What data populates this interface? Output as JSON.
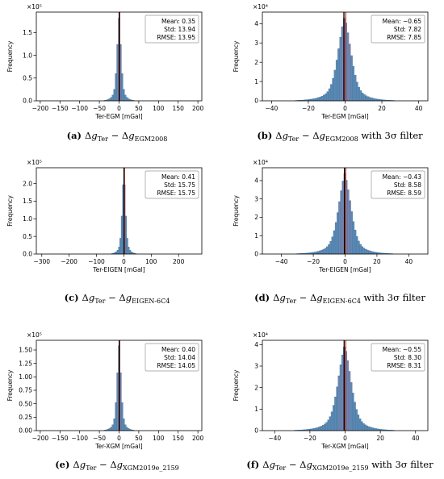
{
  "chart_data": [
    {
      "type": "bar",
      "panel": "(a)",
      "caption": {
        "label": "(a)",
        "text": "Δg_Ter − Δg_EGM2008"
      },
      "xlabel": "Ter-EGM [mGal]",
      "ylabel": "Frequency",
      "y_scale_label": "×10⁵",
      "xlim": [
        -210,
        210
      ],
      "ylim": [
        0,
        1.95
      ],
      "xticks": [
        -200,
        -150,
        -100,
        -50,
        0,
        50,
        100,
        150,
        200
      ],
      "yticks": [
        0.0,
        0.5,
        1.0,
        1.5
      ],
      "ytick_labels": [
        "0.0",
        "0.5",
        "1.0",
        "1.5"
      ],
      "stats": [
        {
          "label": "Mean:",
          "value": "0.35"
        },
        {
          "label": "Std:",
          "value": "13.94"
        },
        {
          "label": "RMSE:",
          "value": "13.95"
        }
      ],
      "hist": {
        "center": 0,
        "peak": 1.82,
        "bin_width": 4,
        "range": [
          -90,
          90
        ],
        "scale": 7.5
      },
      "mean_line_x": 0.35,
      "legend_position": "top-right"
    },
    {
      "type": "bar",
      "panel": "(b)",
      "caption": {
        "label": "(b)",
        "text": "Δg_Ter − Δg_EGM2008 with 3σ filter"
      },
      "xlabel": "Ter-EGM [mGal]",
      "ylabel": "Frequency",
      "y_scale_label": "×10⁴",
      "xlim": [
        -45,
        45
      ],
      "ylim": [
        0,
        4.6
      ],
      "xticks": [
        -40,
        -20,
        0,
        20,
        40
      ],
      "yticks": [
        0,
        1,
        2,
        3,
        4
      ],
      "ytick_labels": [
        "0",
        "1",
        "2",
        "3",
        "4"
      ],
      "stats": [
        {
          "label": "Mean:",
          "value": "−0.65"
        },
        {
          "label": "Std:",
          "value": "7.82"
        },
        {
          "label": "RMSE:",
          "value": "7.85"
        }
      ],
      "hist": {
        "center": -0.3,
        "peak": 4.35,
        "bin_width": 1,
        "range": [
          -42,
          42
        ],
        "scale": 5.2
      },
      "mean_line_x": -0.65,
      "legend_position": "top-right"
    },
    {
      "type": "bar",
      "panel": "(c)",
      "caption": {
        "label": "(c)",
        "text": "Δg_Ter − Δg_EIGEN-6C4"
      },
      "xlabel": "Ter-EIGEN [mGal]",
      "ylabel": "Frequency",
      "y_scale_label": "×10⁵",
      "xlim": [
        -320,
        285
      ],
      "ylim": [
        0,
        2.45
      ],
      "xticks": [
        -300,
        -200,
        -100,
        0,
        100,
        200
      ],
      "yticks": [
        0.0,
        0.5,
        1.0,
        1.5,
        2.0
      ],
      "ytick_labels": [
        "0.0",
        "0.5",
        "1.0",
        "1.5",
        "2.0"
      ],
      "stats": [
        {
          "label": "Mean:",
          "value": "0.41"
        },
        {
          "label": "Std:",
          "value": "15.75"
        },
        {
          "label": "RMSE:",
          "value": "15.75"
        }
      ],
      "hist": {
        "center": 0,
        "peak": 2.3,
        "bin_width": 5,
        "range": [
          -110,
          110
        ],
        "scale": 9
      },
      "mean_line_x": 0.41,
      "legend_position": "top-right"
    },
    {
      "type": "bar",
      "panel": "(d)",
      "caption": {
        "label": "(d)",
        "text": "Δg_Ter − Δg_EIGEN-6C4 with 3σ filter"
      },
      "xlabel": "Ter-EIGEN [mGal]",
      "ylabel": "Frequency",
      "y_scale_label": "×10⁴",
      "xlim": [
        -52,
        52
      ],
      "ylim": [
        0,
        4.7
      ],
      "xticks": [
        -40,
        -20,
        0,
        20,
        40
      ],
      "yticks": [
        0,
        1,
        2,
        3,
        4
      ],
      "ytick_labels": [
        "0",
        "1",
        "2",
        "3",
        "4"
      ],
      "stats": [
        {
          "label": "Mean:",
          "value": "−0.43"
        },
        {
          "label": "Std:",
          "value": "8.58"
        },
        {
          "label": "RMSE:",
          "value": "8.59"
        }
      ],
      "hist": {
        "center": -0.2,
        "peak": 4.4,
        "bin_width": 1.1,
        "range": [
          -47,
          47
        ],
        "scale": 5.8
      },
      "mean_line_x": -0.43,
      "legend_position": "top-right"
    },
    {
      "type": "bar",
      "panel": "(e)",
      "caption": {
        "label": "(e)",
        "text": "Δg_Ter − Δg_XGM2019e_2159"
      },
      "xlabel": "Ter-XGM [mGal]",
      "ylabel": "Frequency",
      "y_scale_label": "×10⁵",
      "xlim": [
        -210,
        210
      ],
      "ylim": [
        0,
        1.68
      ],
      "xticks": [
        -200,
        -150,
        -100,
        -50,
        0,
        50,
        100,
        150,
        200
      ],
      "yticks": [
        0.0,
        0.25,
        0.5,
        0.75,
        1.0,
        1.25,
        1.5
      ],
      "ytick_labels": [
        "0.00",
        "0.25",
        "0.50",
        "0.75",
        "1.00",
        "1.25",
        "1.50"
      ],
      "stats": [
        {
          "label": "Mean:",
          "value": "0.40"
        },
        {
          "label": "Std:",
          "value": "14.04"
        },
        {
          "label": "RMSE:",
          "value": "14.05"
        }
      ],
      "hist": {
        "center": 0,
        "peak": 1.58,
        "bin_width": 4,
        "range": [
          -90,
          90
        ],
        "scale": 7.5
      },
      "mean_line_x": 0.4,
      "legend_position": "top-right"
    },
    {
      "type": "bar",
      "panel": "(f)",
      "caption": {
        "label": "(f)",
        "text": "Δg_Ter − Δg_XGM2019e_2159 with 3σ filter"
      },
      "xlabel": "Ter-XGM [mGal]",
      "ylabel": "Frequency",
      "y_scale_label": "×10⁴",
      "xlim": [
        -47,
        47
      ],
      "ylim": [
        0,
        4.2
      ],
      "xticks": [
        -40,
        -20,
        0,
        20,
        40
      ],
      "yticks": [
        0,
        1,
        2,
        3,
        4
      ],
      "ytick_labels": [
        "0",
        "1",
        "2",
        "3",
        "4"
      ],
      "stats": [
        {
          "label": "Mean:",
          "value": "−0.55"
        },
        {
          "label": "Std:",
          "value": "8.30"
        },
        {
          "label": "RMSE:",
          "value": "8.31"
        }
      ],
      "hist": {
        "center": -0.3,
        "peak": 3.95,
        "bin_width": 1,
        "range": [
          -44,
          44
        ],
        "scale": 5.5
      },
      "mean_line_x": -0.55,
      "legend_position": "top-right"
    }
  ],
  "colors": {
    "bar_fill": "#5b8bb5",
    "bar_edge": "#3f6f99",
    "overlay_fill": "#b07aa8",
    "mean_line": "#000000",
    "zero_line": "#c0392b"
  }
}
